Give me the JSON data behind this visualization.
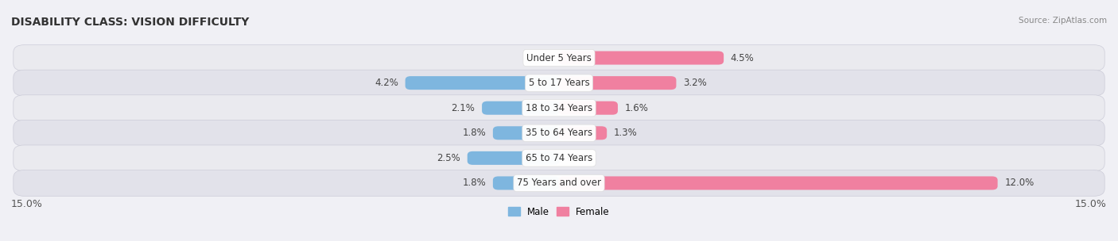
{
  "title": "DISABILITY CLASS: VISION DIFFICULTY",
  "source": "Source: ZipAtlas.com",
  "categories": [
    "Under 5 Years",
    "5 to 17 Years",
    "18 to 34 Years",
    "35 to 64 Years",
    "65 to 74 Years",
    "75 Years and over"
  ],
  "male_values": [
    0.0,
    4.2,
    2.1,
    1.8,
    2.5,
    1.8
  ],
  "female_values": [
    4.5,
    3.2,
    1.6,
    1.3,
    0.0,
    12.0
  ],
  "male_color": "#7eb6df",
  "female_color": "#f080a0",
  "row_bg_even": "#eeeeF3",
  "row_bg_odd": "#e4e4ec",
  "x_max": 15.0,
  "x_min": -15.0,
  "bar_height": 0.52,
  "title_fontsize": 10,
  "label_fontsize": 8.5,
  "axis_label_fontsize": 9,
  "figsize": [
    14.06,
    3.04
  ]
}
